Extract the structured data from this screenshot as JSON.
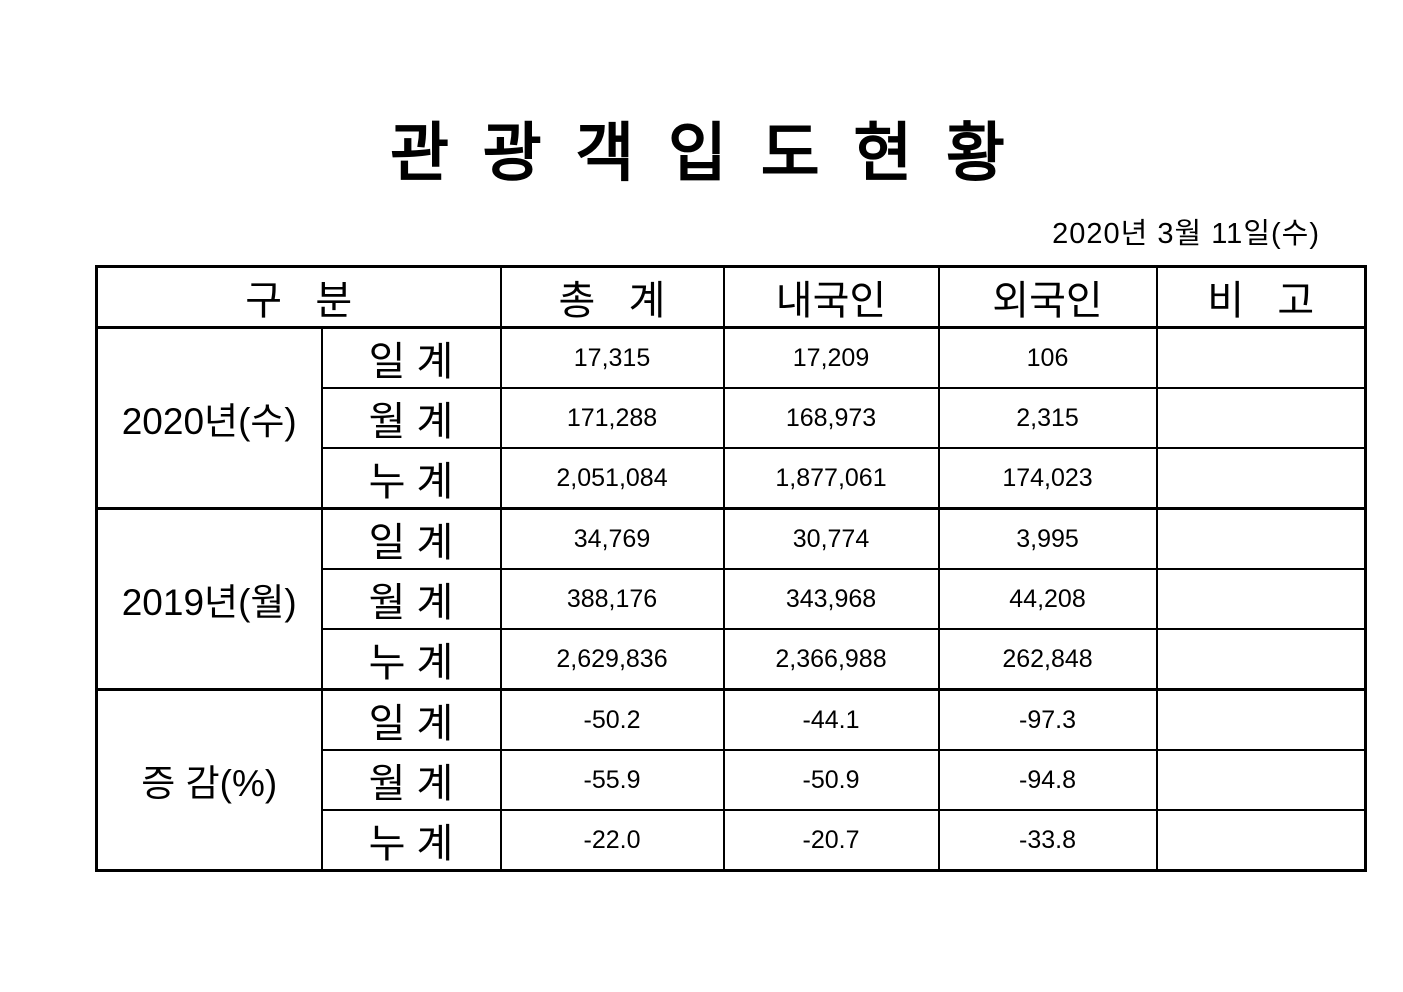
{
  "page": {
    "title": "관 광 객 입 도 현 황",
    "date": "2020년  3월  11일(수)"
  },
  "colors": {
    "text": "#000000",
    "border": "#000000",
    "background": "#ffffff"
  },
  "table": {
    "headers": {
      "category": "구   분",
      "total": "총   계",
      "domestic": "내국인",
      "foreign": "외국인",
      "note": "비   고"
    },
    "groups": [
      {
        "label": "2020년(수)",
        "rows": [
          {
            "period": "일 계",
            "total": "17,315",
            "domestic": "17,209",
            "foreign": "106",
            "note": ""
          },
          {
            "period": "월 계",
            "total": "171,288",
            "domestic": "168,973",
            "foreign": "2,315",
            "note": ""
          },
          {
            "period": "누 계",
            "total": "2,051,084",
            "domestic": "1,877,061",
            "foreign": "174,023",
            "note": ""
          }
        ]
      },
      {
        "label": "2019년(월)",
        "rows": [
          {
            "period": "일 계",
            "total": "34,769",
            "domestic": "30,774",
            "foreign": "3,995",
            "note": ""
          },
          {
            "period": "월 계",
            "total": "388,176",
            "domestic": "343,968",
            "foreign": "44,208",
            "note": ""
          },
          {
            "period": "누 계",
            "total": "2,629,836",
            "domestic": "2,366,988",
            "foreign": "262,848",
            "note": ""
          }
        ]
      },
      {
        "label": "증 감(%)",
        "rows": [
          {
            "period": "일 계",
            "total": "-50.2",
            "domestic": "-44.1",
            "foreign": "-97.3",
            "note": ""
          },
          {
            "period": "월 계",
            "total": "-55.9",
            "domestic": "-50.9",
            "foreign": "-94.8",
            "note": ""
          },
          {
            "period": "누 계",
            "total": "-22.0",
            "domestic": "-20.7",
            "foreign": "-33.8",
            "note": ""
          }
        ]
      }
    ]
  }
}
